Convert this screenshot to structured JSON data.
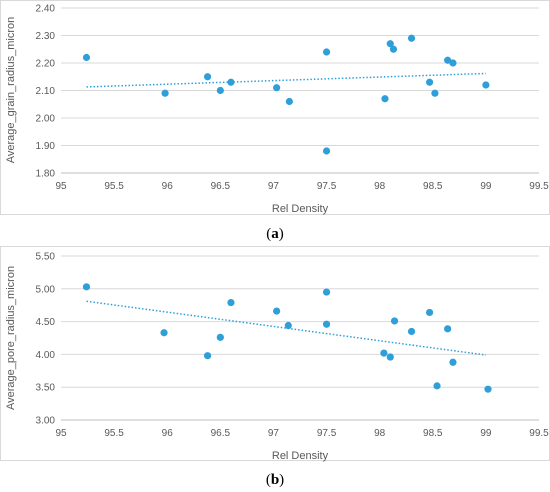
{
  "chart_data": [
    {
      "type": "scatter",
      "panel_label": "a",
      "title": "",
      "xlabel": "Rel Density",
      "ylabel": "Average_grain_radius_micron",
      "xlim": [
        95,
        99.5
      ],
      "ylim": [
        1.8,
        2.4
      ],
      "xticks": [
        "95",
        "95.5",
        "96",
        "96.5",
        "97",
        "97.5",
        "98",
        "98.5",
        "99",
        "99.5"
      ],
      "yticks": [
        "1.80",
        "1.90",
        "2.00",
        "2.10",
        "2.20",
        "2.30",
        "2.40"
      ],
      "grid": true,
      "legend": "none",
      "series": [
        {
          "points": [
            [
              95.24,
              2.22
            ],
            [
              95.98,
              2.09
            ],
            [
              96.38,
              2.15
            ],
            [
              96.5,
              2.1
            ],
            [
              96.6,
              2.13
            ],
            [
              97.03,
              2.11
            ],
            [
              97.15,
              2.06
            ],
            [
              97.5,
              2.24
            ],
            [
              97.5,
              1.88
            ],
            [
              98.05,
              2.07
            ],
            [
              98.1,
              2.27
            ],
            [
              98.13,
              2.25
            ],
            [
              98.3,
              2.29
            ],
            [
              98.47,
              2.13
            ],
            [
              98.52,
              2.09
            ],
            [
              98.64,
              2.21
            ],
            [
              98.69,
              2.2
            ],
            [
              99.0,
              2.12
            ]
          ]
        }
      ],
      "trendline": {
        "type": "linear",
        "x": [
          95.24,
          99.0
        ],
        "y": [
          2.113,
          2.162
        ]
      },
      "colors": {
        "marker": "#2e9fd8",
        "trendline": "#2e9fd8",
        "grid": "#d9d9d9"
      }
    },
    {
      "type": "scatter",
      "panel_label": "b",
      "title": "",
      "xlabel": "Rel Density",
      "ylabel": "Average_pore_radius_micron",
      "xlim": [
        95,
        99.5
      ],
      "ylim": [
        3.0,
        5.5
      ],
      "xticks": [
        "95",
        "95.5",
        "96",
        "96.5",
        "97",
        "97.5",
        "98",
        "98.5",
        "99",
        "99.5"
      ],
      "yticks": [
        "3.00",
        "3.50",
        "4.00",
        "4.50",
        "5.00",
        "5.50"
      ],
      "grid": true,
      "legend": "none",
      "series": [
        {
          "points": [
            [
              95.24,
              5.03
            ],
            [
              95.97,
              4.33
            ],
            [
              96.38,
              3.98
            ],
            [
              96.5,
              4.26
            ],
            [
              96.6,
              4.79
            ],
            [
              97.03,
              4.66
            ],
            [
              97.14,
              4.44
            ],
            [
              97.5,
              4.95
            ],
            [
              97.5,
              4.46
            ],
            [
              98.04,
              4.02
            ],
            [
              98.1,
              3.96
            ],
            [
              98.14,
              4.51
            ],
            [
              98.3,
              4.35
            ],
            [
              98.47,
              4.64
            ],
            [
              98.54,
              3.52
            ],
            [
              98.64,
              4.39
            ],
            [
              98.69,
              3.88
            ],
            [
              99.02,
              3.47
            ]
          ]
        }
      ],
      "trendline": {
        "type": "linear",
        "x": [
          95.24,
          99.0
        ],
        "y": [
          4.81,
          3.99
        ]
      },
      "colors": {
        "marker": "#2e9fd8",
        "trendline": "#2e9fd8",
        "grid": "#d9d9d9"
      }
    }
  ]
}
